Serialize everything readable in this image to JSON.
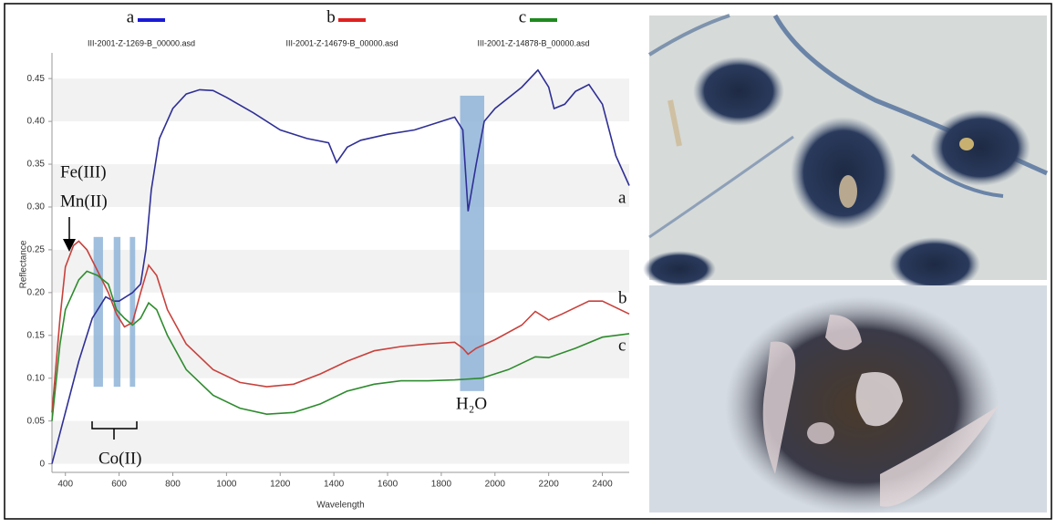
{
  "chart_data": {
    "type": "line",
    "x_label": "Wavelength",
    "y_label": "Reflectance",
    "xlim": [
      350,
      2500
    ],
    "ylim": [
      -0.01,
      0.48
    ],
    "xticks": [
      400,
      600,
      800,
      1000,
      1200,
      1400,
      1600,
      1800,
      2000,
      2200,
      2400
    ],
    "yticks": [
      0,
      0.05,
      {
        "value": 0.1,
        "label": "0.10"
      },
      0.15,
      {
        "value": 0.2,
        "label": "0.20"
      },
      0.25,
      {
        "value": 0.3,
        "label": "0.30"
      },
      0.35,
      {
        "value": 0.4,
        "label": "0.40"
      },
      0.45
    ],
    "grid": true,
    "series": [
      {
        "name": "a",
        "file": "III-2001-Z-1269-B_00000.asd",
        "color": "#2f2f96",
        "legend_color": "#1a1ad8",
        "x": [
          350,
          400,
          450,
          500,
          550,
          580,
          600,
          650,
          680,
          700,
          720,
          750,
          800,
          850,
          900,
          950,
          1000,
          1100,
          1200,
          1300,
          1380,
          1410,
          1450,
          1500,
          1600,
          1700,
          1800,
          1850,
          1880,
          1900,
          1930,
          1960,
          2000,
          2100,
          2160,
          2200,
          2220,
          2260,
          2300,
          2350,
          2400,
          2450,
          2500
        ],
        "values": [
          0.0,
          0.06,
          0.12,
          0.17,
          0.195,
          0.19,
          0.19,
          0.2,
          0.21,
          0.25,
          0.32,
          0.38,
          0.415,
          0.432,
          0.437,
          0.436,
          0.428,
          0.41,
          0.39,
          0.38,
          0.375,
          0.352,
          0.37,
          0.378,
          0.385,
          0.39,
          0.4,
          0.405,
          0.39,
          0.295,
          0.35,
          0.4,
          0.415,
          0.44,
          0.46,
          0.44,
          0.415,
          0.42,
          0.435,
          0.443,
          0.42,
          0.36,
          0.325
        ]
      },
      {
        "name": "b",
        "file": "III-2001-Z-14679-B_00000.asd",
        "color": "#c8413c",
        "legend_color": "#e02020",
        "x": [
          350,
          380,
          400,
          430,
          450,
          480,
          520,
          560,
          590,
          620,
          650,
          680,
          710,
          740,
          780,
          850,
          950,
          1050,
          1150,
          1250,
          1350,
          1450,
          1550,
          1650,
          1750,
          1850,
          1880,
          1900,
          1930,
          2000,
          2100,
          2150,
          2200,
          2250,
          2350,
          2400,
          2500
        ],
        "values": [
          0.06,
          0.17,
          0.23,
          0.255,
          0.26,
          0.25,
          0.225,
          0.2,
          0.175,
          0.16,
          0.165,
          0.2,
          0.232,
          0.22,
          0.18,
          0.14,
          0.11,
          0.095,
          0.09,
          0.093,
          0.105,
          0.12,
          0.132,
          0.137,
          0.14,
          0.142,
          0.135,
          0.128,
          0.135,
          0.145,
          0.162,
          0.178,
          0.168,
          0.175,
          0.19,
          0.19,
          0.175
        ]
      },
      {
        "name": "c",
        "file": "III-2001-Z-14878-B_00000.asd",
        "color": "#2e8b2e",
        "legend_color": "#1e8a1e",
        "x": [
          350,
          380,
          400,
          450,
          480,
          520,
          560,
          590,
          620,
          650,
          680,
          710,
          740,
          780,
          850,
          950,
          1050,
          1150,
          1250,
          1350,
          1450,
          1550,
          1650,
          1750,
          1850,
          1950,
          2050,
          2150,
          2200,
          2300,
          2400,
          2500
        ],
        "values": [
          0.05,
          0.14,
          0.18,
          0.215,
          0.225,
          0.22,
          0.21,
          0.18,
          0.17,
          0.162,
          0.17,
          0.188,
          0.18,
          0.15,
          0.11,
          0.08,
          0.065,
          0.058,
          0.06,
          0.07,
          0.085,
          0.093,
          0.097,
          0.097,
          0.098,
          0.1,
          0.11,
          0.125,
          0.124,
          0.135,
          0.148,
          0.152
        ]
      }
    ],
    "bands": [
      {
        "x": [
          505,
          540
        ],
        "y": [
          0.09,
          0.265
        ]
      },
      {
        "x": [
          580,
          605
        ],
        "y": [
          0.09,
          0.265
        ]
      },
      {
        "x": [
          640,
          660
        ],
        "y": [
          0.09,
          0.265
        ]
      },
      {
        "x": [
          1870,
          1960
        ],
        "y": [
          0.085,
          0.43
        ]
      }
    ],
    "annotations": {
      "fe": "Fe(III)",
      "mn": "Mn(II)",
      "co": "Co(II)",
      "h2o": "H₂O"
    }
  }
}
